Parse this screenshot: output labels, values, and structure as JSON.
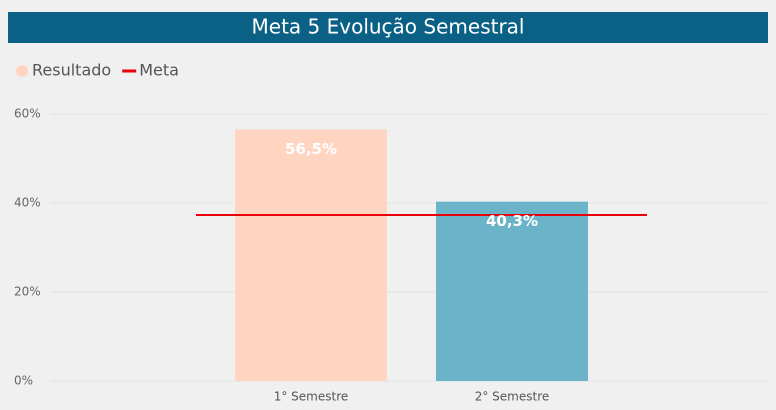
{
  "chart_data": {
    "type": "bar",
    "title": "Meta 5 Evolução Semestral",
    "categories": [
      "1° Semestre",
      "2° Semestre"
    ],
    "series": [
      {
        "name": "Resultado",
        "color": "#ffd5c2",
        "colors": [
          "#ffd5c2",
          "#6bb3c8"
        ],
        "values": [
          56.5,
          40.3
        ],
        "value_labels": [
          "56,5%",
          "40,3%"
        ]
      },
      {
        "name": "Meta",
        "type": "line",
        "color": "#e8000b",
        "values": [
          37.3,
          37.3
        ]
      }
    ],
    "ylim": [
      0,
      60
    ],
    "yticks": [
      {
        "value": 0,
        "label": "0%"
      },
      {
        "value": 20,
        "label": "20%"
      },
      {
        "value": 40,
        "label": "40%"
      },
      {
        "value": 60,
        "label": "60%"
      }
    ],
    "grid": true,
    "legend": "top-left"
  }
}
